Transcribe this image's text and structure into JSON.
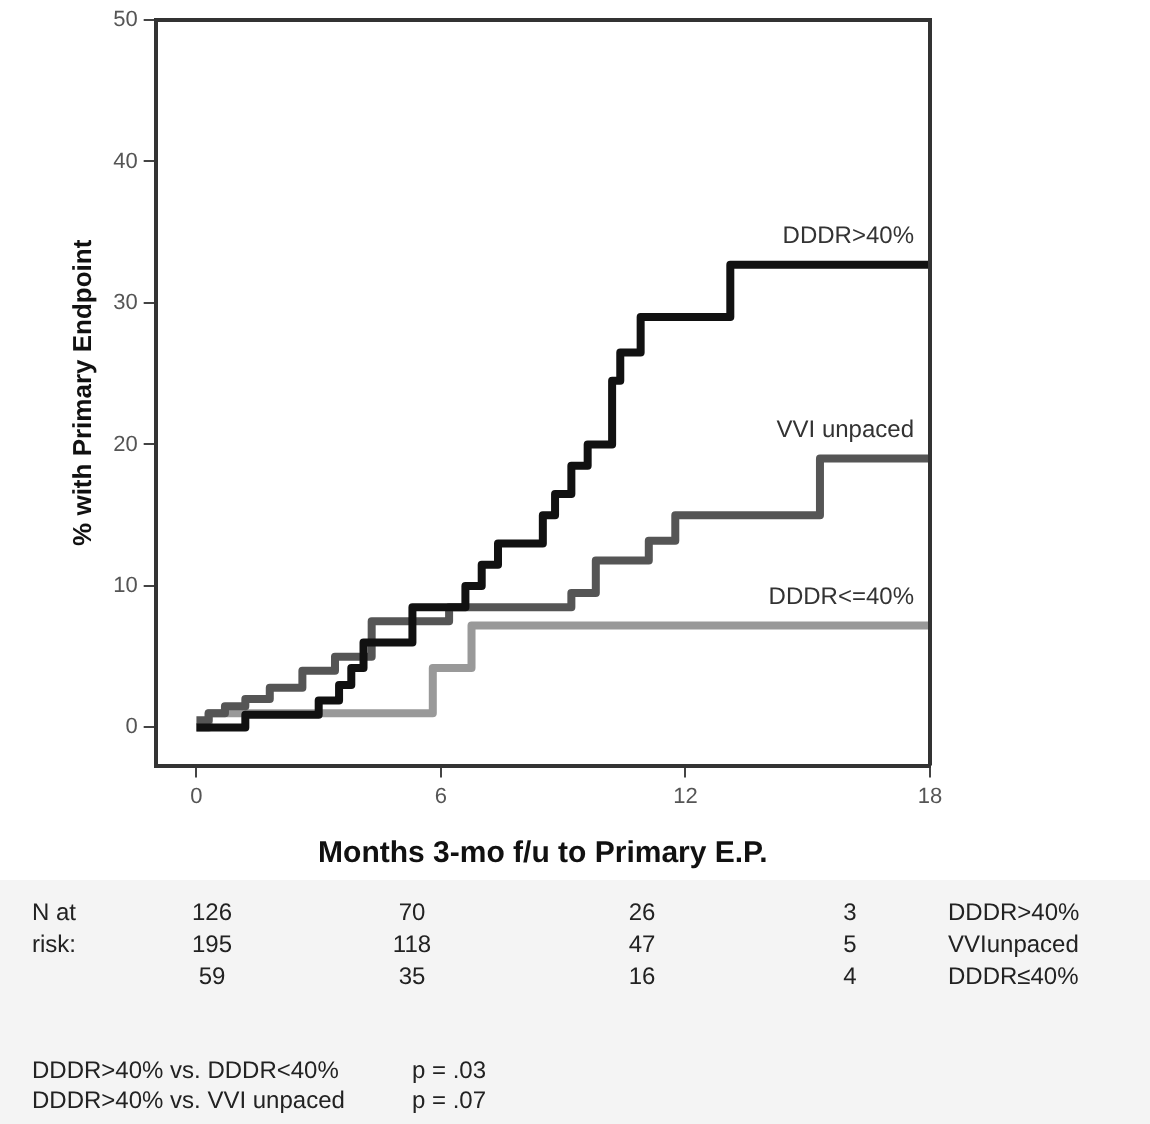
{
  "chart_data": {
    "type": "step",
    "xlabel": "Months 3-mo f/u to Primary E.P.",
    "ylabel": "% with Primary Endpoint",
    "xlim": [
      -1,
      18
    ],
    "ylim": [
      -2.7,
      50
    ],
    "xticks": [
      0,
      6,
      12,
      18
    ],
    "yticks": [
      0,
      10,
      20,
      30,
      40,
      50
    ],
    "grid": false,
    "legend": false,
    "marker": "none",
    "line_style": "solid",
    "series": [
      {
        "name": "DDDR>40%",
        "color": "#111111",
        "x": [
          0,
          1.2,
          3.0,
          3.5,
          3.8,
          4.1,
          5.3,
          6.6,
          7.0,
          7.4,
          8.5,
          8.8,
          9.2,
          9.6,
          10.2,
          10.4,
          10.9,
          13.1,
          18
        ],
        "values": [
          0,
          0.9,
          1.9,
          3,
          4.2,
          6,
          8.5,
          10,
          11.5,
          13,
          15,
          16.5,
          18.5,
          20,
          24.5,
          26.5,
          29,
          32.7,
          32.7
        ]
      },
      {
        "name": "VVI unpaced",
        "color": "#555555",
        "x": [
          0,
          0.3,
          0.7,
          1.2,
          1.8,
          2.6,
          3.4,
          4.3,
          6.2,
          9.2,
          9.8,
          11.1,
          11.75,
          15.3,
          18
        ],
        "values": [
          0.5,
          1,
          1.5,
          2,
          2.8,
          4,
          5,
          7.5,
          8.5,
          9.5,
          11.8,
          13.2,
          15,
          19,
          19
        ]
      },
      {
        "name": "DDDR<=40%",
        "color": "#999999",
        "x": [
          0,
          0.3,
          5.8,
          6.75,
          18
        ],
        "values": [
          0,
          1,
          4.2,
          7.2,
          7.2
        ]
      }
    ],
    "annotations": [
      "N at",
      "126",
      "70",
      "26",
      "3",
      "DDDR>40%",
      "risk:",
      "195",
      "118",
      "47",
      "5",
      "VVIunpaced",
      "59",
      "35",
      "16",
      "4",
      "DDDR≤40%",
      "DDDR>40% vs. DDDR<40%",
      "p = .03",
      "DDDR>40% vs. VVI unpaced",
      "p = .07"
    ]
  }
}
